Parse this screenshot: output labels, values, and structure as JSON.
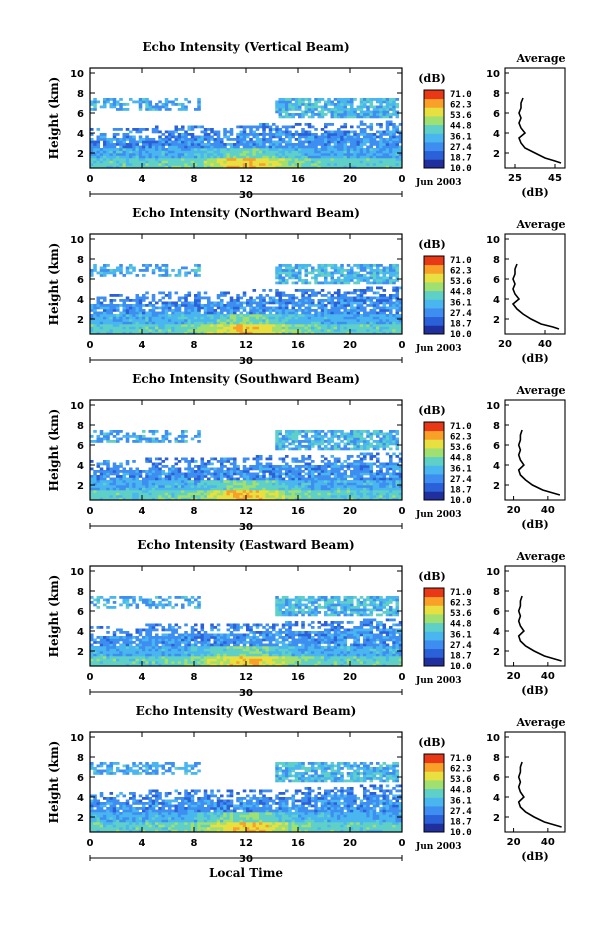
{
  "figure": {
    "xlabel": "Local Time"
  },
  "panels": [
    {
      "title": "Echo Intensity (Vertical Beam)",
      "ylabel": "Height (km)",
      "yticks": [
        "2",
        "4",
        "6",
        "8",
        "10"
      ],
      "xticks": [
        "0",
        "4",
        "8",
        "12",
        "16",
        "20",
        "0"
      ],
      "date_day": "30",
      "date_right": "Jun 2003",
      "cbar_unit": "(dB)",
      "cbar_labels": [
        "71.0",
        "62.3",
        "53.6",
        "44.8",
        "36.1",
        "27.4",
        "18.7",
        "10.0"
      ],
      "avg_title": "Average",
      "avg_xticks": [
        "25",
        "45"
      ],
      "avg_xlabel": "(dB)",
      "avg_yticks": [
        "2",
        "4",
        "6",
        "8",
        "10"
      ]
    },
    {
      "title": "Echo Intensity (Northward Beam)",
      "ylabel": "Height (km)",
      "yticks": [
        "2",
        "4",
        "6",
        "8",
        "10"
      ],
      "xticks": [
        "0",
        "4",
        "8",
        "12",
        "16",
        "20",
        "0"
      ],
      "date_day": "30",
      "date_right": "Jun 2003",
      "cbar_unit": "(dB)",
      "cbar_labels": [
        "71.0",
        "62.3",
        "53.6",
        "44.8",
        "36.1",
        "27.4",
        "18.7",
        "10.0"
      ],
      "avg_title": "Average",
      "avg_xticks": [
        "20",
        "40"
      ],
      "avg_xlabel": "(dB)",
      "avg_yticks": [
        "2",
        "4",
        "6",
        "8",
        "10"
      ]
    },
    {
      "title": "Echo Intensity (Southward Beam)",
      "ylabel": "Height (km)",
      "yticks": [
        "2",
        "4",
        "6",
        "8",
        "10"
      ],
      "xticks": [
        "0",
        "4",
        "8",
        "12",
        "16",
        "20",
        "0"
      ],
      "date_day": "30",
      "date_right": "Jun 2003",
      "cbar_unit": "(dB)",
      "cbar_labels": [
        "71.0",
        "62.3",
        "53.6",
        "44.8",
        "36.1",
        "27.4",
        "18.7",
        "10.0"
      ],
      "avg_title": "Average",
      "avg_xticks": [
        "20",
        "40"
      ],
      "avg_xlabel": "(dB)",
      "avg_yticks": [
        "2",
        "4",
        "6",
        "8",
        "10"
      ]
    },
    {
      "title": "Echo Intensity (Eastward Beam)",
      "ylabel": "Height (km)",
      "yticks": [
        "2",
        "4",
        "6",
        "8",
        "10"
      ],
      "xticks": [
        "0",
        "4",
        "8",
        "12",
        "16",
        "20",
        "0"
      ],
      "date_day": "30",
      "date_right": "Jun 2003",
      "cbar_unit": "(dB)",
      "cbar_labels": [
        "71.0",
        "62.3",
        "53.6",
        "44.8",
        "36.1",
        "27.4",
        "18.7",
        "10.0"
      ],
      "avg_title": "Average",
      "avg_xticks": [
        "20",
        "40"
      ],
      "avg_xlabel": "(dB)",
      "avg_yticks": [
        "2",
        "4",
        "6",
        "8",
        "10"
      ]
    },
    {
      "title": "Echo Intensity (Westward Beam)",
      "ylabel": "Height (km)",
      "yticks": [
        "2",
        "4",
        "6",
        "8",
        "10"
      ],
      "xticks": [
        "0",
        "4",
        "8",
        "12",
        "16",
        "20",
        "0"
      ],
      "date_day": "30",
      "date_right": "Jun 2003",
      "cbar_unit": "(dB)",
      "cbar_labels": [
        "71.0",
        "62.3",
        "53.6",
        "44.8",
        "36.1",
        "27.4",
        "18.7",
        "10.0"
      ],
      "avg_title": "Average",
      "avg_xticks": [
        "20",
        "40"
      ],
      "avg_xlabel": "(dB)",
      "avg_yticks": [
        "2",
        "4",
        "6",
        "8",
        "10"
      ]
    }
  ],
  "chart_data": [
    {
      "type": "heatmap",
      "title": "Echo Intensity (Vertical Beam)",
      "xlabel": "Local Time",
      "ylabel": "Height (km)",
      "xlim": [
        0,
        24
      ],
      "ylim": [
        0.5,
        10.5
      ],
      "colorbar": {
        "unit": "(dB)",
        "min": 10.0,
        "max": 71.0,
        "levels": [
          10.0,
          18.7,
          27.4,
          36.1,
          44.8,
          53.6,
          62.3,
          71.0
        ]
      },
      "colors": [
        "#1f2f9e",
        "#2a60d8",
        "#3d8ef0",
        "#49b6f0",
        "#5fd0c8",
        "#9fe070",
        "#e8e040",
        "#f8a028",
        "#e83818"
      ],
      "summary": {
        "surface_max_dB": 71.0,
        "surface_max_time": 12,
        "layer_top_km": 3.5,
        "upper_cloud_km": [
          5.5,
          7.5
        ]
      }
    },
    {
      "type": "line",
      "title": "Average",
      "xlabel": "(dB)",
      "ylabel": "Height (km)",
      "xlim": [
        20,
        50
      ],
      "ylim": [
        0.5,
        10.5
      ],
      "series": [
        {
          "x": [
            48,
            45,
            40,
            35,
            30,
            28,
            27,
            30,
            28,
            27,
            28,
            27,
            28,
            28,
            29
          ],
          "y": [
            1.0,
            1.2,
            1.5,
            2.0,
            2.5,
            3.0,
            3.5,
            4.0,
            4.5,
            5.0,
            5.5,
            6.0,
            6.5,
            7.0,
            7.5
          ]
        }
      ]
    },
    {
      "type": "heatmap",
      "title": "Echo Intensity (Northward Beam)",
      "xlabel": "Local Time",
      "ylabel": "Height (km)",
      "xlim": [
        0,
        24
      ],
      "ylim": [
        0.5,
        10.5
      ],
      "colorbar": {
        "unit": "(dB)",
        "min": 10.0,
        "max": 71.0
      }
    },
    {
      "type": "line",
      "title": "Average",
      "xlabel": "(dB)",
      "ylabel": "Height (km)",
      "xlim": [
        20,
        50
      ],
      "ylim": [
        0.5,
        10.5
      ],
      "series": [
        {
          "x": [
            47,
            44,
            38,
            33,
            29,
            26,
            24,
            27,
            25,
            24,
            25,
            24,
            25,
            25,
            26
          ],
          "y": [
            1.0,
            1.2,
            1.5,
            2.0,
            2.5,
            3.0,
            3.5,
            4.0,
            4.5,
            5.0,
            5.5,
            6.0,
            6.5,
            7.0,
            7.5
          ]
        }
      ]
    },
    {
      "type": "heatmap",
      "title": "Echo Intensity (Southward Beam)",
      "xlabel": "Local Time",
      "ylabel": "Height (km)",
      "xlim": [
        0,
        24
      ],
      "ylim": [
        0.5,
        10.5
      ],
      "colorbar": {
        "unit": "(dB)",
        "min": 10.0,
        "max": 71.0
      }
    },
    {
      "type": "line",
      "title": "Average",
      "xlabel": "(dB)",
      "ylabel": "Height (km)",
      "xlim": [
        15,
        50
      ],
      "ylim": [
        0.5,
        10.5
      ],
      "series": [
        {
          "x": [
            47,
            43,
            37,
            31,
            27,
            24,
            23,
            26,
            24,
            23,
            24,
            23,
            24,
            24,
            25
          ],
          "y": [
            1.0,
            1.2,
            1.5,
            2.0,
            2.5,
            3.0,
            3.5,
            4.0,
            4.5,
            5.0,
            5.5,
            6.0,
            6.5,
            7.0,
            7.5
          ]
        }
      ]
    },
    {
      "type": "heatmap",
      "title": "Echo Intensity (Eastward Beam)",
      "xlabel": "Local Time",
      "ylabel": "Height (km)",
      "xlim": [
        0,
        24
      ],
      "ylim": [
        0.5,
        10.5
      ],
      "colorbar": {
        "unit": "(dB)",
        "min": 10.0,
        "max": 71.0
      }
    },
    {
      "type": "line",
      "title": "Average",
      "xlabel": "(dB)",
      "ylabel": "Height (km)",
      "xlim": [
        15,
        50
      ],
      "ylim": [
        0.5,
        10.5
      ],
      "series": [
        {
          "x": [
            48,
            44,
            38,
            32,
            27,
            24,
            23,
            26,
            24,
            23,
            24,
            23,
            24,
            24,
            25
          ],
          "y": [
            1.0,
            1.2,
            1.5,
            2.0,
            2.5,
            3.0,
            3.5,
            4.0,
            4.5,
            5.0,
            5.5,
            6.0,
            6.5,
            7.0,
            7.5
          ]
        }
      ]
    },
    {
      "type": "heatmap",
      "title": "Echo Intensity (Westward Beam)",
      "xlabel": "Local Time",
      "ylabel": "Height (km)",
      "xlim": [
        0,
        24
      ],
      "ylim": [
        0.5,
        10.5
      ],
      "colorbar": {
        "unit": "(dB)",
        "min": 10.0,
        "max": 71.0
      }
    },
    {
      "type": "line",
      "title": "Average",
      "xlabel": "(dB)",
      "ylabel": "Height (km)",
      "xlim": [
        15,
        50
      ],
      "ylim": [
        0.5,
        10.5
      ],
      "series": [
        {
          "x": [
            48,
            44,
            38,
            32,
            27,
            24,
            23,
            26,
            24,
            23,
            24,
            23,
            24,
            24,
            25
          ],
          "y": [
            1.0,
            1.2,
            1.5,
            2.0,
            2.5,
            3.0,
            3.5,
            4.0,
            4.5,
            5.0,
            5.5,
            6.0,
            6.5,
            7.0,
            7.5
          ]
        }
      ]
    }
  ]
}
